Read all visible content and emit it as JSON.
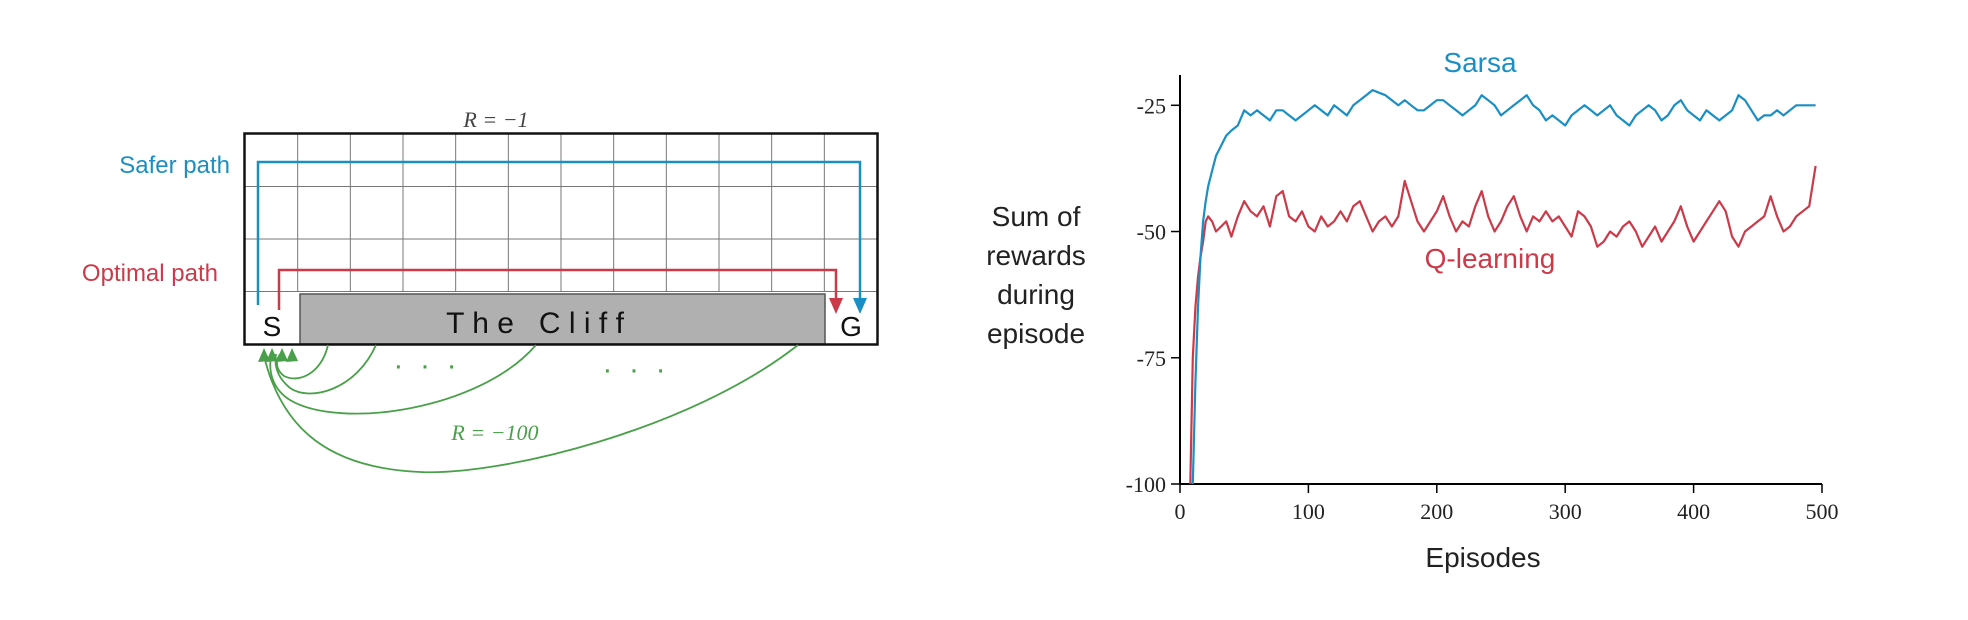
{
  "colors": {
    "sarsa": "#1a8fc4",
    "qlearning": "#cc3a4a",
    "cliff_arcs": "#4aa04a",
    "cliff_fill": "#b0b0b0",
    "grid": "#777777",
    "axis": "#000000",
    "text": "#222222"
  },
  "gridworld": {
    "reward_top": "R = −1",
    "reward_cliff": "R = −100",
    "start": "S",
    "goal": "G",
    "cliff_label": "T h e   C l i f f",
    "safer_path_label": "Safer path",
    "optimal_path_label": "Optimal path",
    "dots_left": "·  ·  ·",
    "dots_right": "·  ·  ·",
    "columns": 12,
    "rows": 4
  },
  "chart_data": {
    "type": "line",
    "title": "",
    "xlabel": "Episodes",
    "ylabel_lines": [
      "Sum of",
      "rewards",
      "during",
      "episode"
    ],
    "xlim": [
      0,
      500
    ],
    "ylim": [
      -100,
      -19
    ],
    "xticks": [
      0,
      100,
      200,
      300,
      400,
      500
    ],
    "xtick_labels": [
      "0",
      "100",
      "200",
      "300",
      "400",
      "500"
    ],
    "yticks": [
      -25,
      -50,
      -75,
      -100
    ],
    "ytick_labels": [
      "-25",
      "-50",
      "-75",
      "-100"
    ],
    "grid": false,
    "series": [
      {
        "name": "Sarsa",
        "color": "#1a8fc4",
        "x": [
          10,
          12,
          14,
          16,
          18,
          20,
          22,
          25,
          28,
          32,
          36,
          40,
          45,
          50,
          55,
          60,
          65,
          70,
          75,
          80,
          85,
          90,
          95,
          100,
          105,
          110,
          115,
          120,
          125,
          130,
          135,
          140,
          145,
          150,
          155,
          160,
          165,
          170,
          175,
          180,
          185,
          190,
          195,
          200,
          205,
          210,
          215,
          220,
          225,
          230,
          235,
          240,
          245,
          250,
          255,
          260,
          265,
          270,
          275,
          280,
          285,
          290,
          295,
          300,
          305,
          310,
          315,
          320,
          325,
          330,
          335,
          340,
          345,
          350,
          355,
          360,
          365,
          370,
          375,
          380,
          385,
          390,
          395,
          400,
          405,
          410,
          415,
          420,
          425,
          430,
          435,
          440,
          445,
          450,
          455,
          460,
          465,
          470,
          475,
          480,
          485,
          490,
          495
        ],
        "y": [
          -100,
          -80,
          -65,
          -55,
          -48,
          -44,
          -41,
          -38,
          -35,
          -33,
          -31,
          -30,
          -29,
          -26,
          -27,
          -26,
          -27,
          -28,
          -26,
          -26,
          -27,
          -28,
          -27,
          -26,
          -25,
          -26,
          -27,
          -25,
          -26,
          -27,
          -25,
          -24,
          -23,
          -22,
          -22.5,
          -23,
          -24,
          -25,
          -24,
          -25,
          -26,
          -26,
          -25,
          -24,
          -24,
          -25,
          -26,
          -27,
          -26,
          -25,
          -23,
          -24,
          -25,
          -27,
          -26,
          -25,
          -24,
          -23,
          -25,
          -26,
          -28,
          -27,
          -28,
          -29,
          -27,
          -26,
          -25,
          -26,
          -27,
          -26,
          -25,
          -27,
          -28,
          -29,
          -27,
          -26,
          -25,
          -26,
          -28,
          -27,
          -25,
          -24,
          -26,
          -27,
          -28,
          -26,
          -27,
          -28,
          -27,
          -26,
          -23,
          -24,
          -26,
          -28,
          -27,
          -27,
          -26,
          -27,
          -26,
          -25,
          -25,
          -25,
          -25
        ]
      },
      {
        "name": "Q-learning",
        "color": "#cc3a4a",
        "x": [
          8,
          10,
          12,
          14,
          16,
          18,
          20,
          22,
          25,
          28,
          32,
          36,
          40,
          45,
          50,
          55,
          60,
          65,
          70,
          75,
          80,
          85,
          90,
          95,
          100,
          105,
          110,
          115,
          120,
          125,
          130,
          135,
          140,
          145,
          150,
          155,
          160,
          165,
          170,
          175,
          180,
          185,
          190,
          195,
          200,
          205,
          210,
          215,
          220,
          225,
          230,
          235,
          240,
          245,
          250,
          255,
          260,
          265,
          270,
          275,
          280,
          285,
          290,
          295,
          300,
          305,
          310,
          315,
          320,
          325,
          330,
          335,
          340,
          345,
          350,
          355,
          360,
          365,
          370,
          375,
          380,
          385,
          390,
          395,
          400,
          405,
          410,
          415,
          420,
          425,
          430,
          435,
          440,
          445,
          450,
          455,
          460,
          465,
          470,
          475,
          480,
          485,
          490,
          495
        ],
        "y": [
          -100,
          -75,
          -65,
          -59,
          -55,
          -52,
          -48,
          -47,
          -48,
          -50,
          -49,
          -48,
          -51,
          -47,
          -44,
          -46,
          -47,
          -45,
          -49,
          -43,
          -42,
          -47,
          -48,
          -46,
          -49,
          -50,
          -47,
          -49,
          -48,
          -46,
          -48,
          -45,
          -44,
          -47,
          -50,
          -48,
          -47,
          -49,
          -47,
          -40,
          -44,
          -48,
          -50,
          -48,
          -46,
          -43,
          -47,
          -50,
          -48,
          -49,
          -45,
          -42,
          -47,
          -50,
          -48,
          -45,
          -43,
          -47,
          -50,
          -47,
          -48,
          -46,
          -48,
          -47,
          -49,
          -51,
          -46,
          -47,
          -49,
          -53,
          -52,
          -50,
          -51,
          -49,
          -48,
          -50,
          -53,
          -51,
          -49,
          -52,
          -50,
          -48,
          -45,
          -49,
          -52,
          -50,
          -48,
          -46,
          -44,
          -46,
          -51,
          -53,
          -50,
          -49,
          -48,
          -47,
          -43,
          -47,
          -50,
          -49,
          -47,
          -46,
          -45,
          -37
        ]
      }
    ]
  }
}
